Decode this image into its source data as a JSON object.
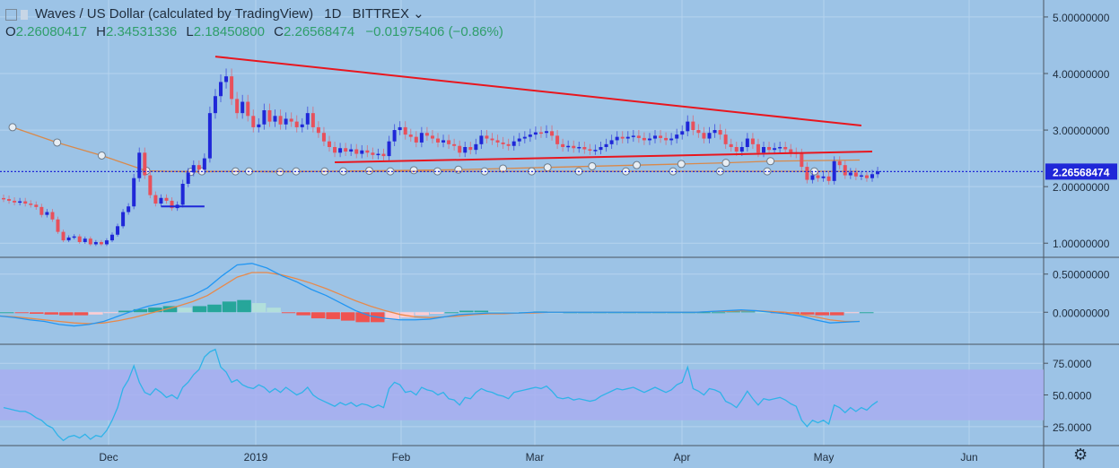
{
  "legend": {
    "title": "Waves / US Dollar (calculated by TradingView)",
    "interval": "1D",
    "exchange": "BITTREX",
    "open_label": "O",
    "open": "2.26080417",
    "high_label": "H",
    "high": "2.34531336",
    "low_label": "L",
    "low": "2.18450800",
    "close_label": "C",
    "close": "2.26568474",
    "change": "−0.01975406 (−0.86%)",
    "chevron": "⌄"
  },
  "icons": {
    "settings": "⚙"
  },
  "colors": {
    "background": "#9cc3e6",
    "bull": "#1f27d8",
    "bear": "#e8505b",
    "trendline": "#e8161e",
    "price_line": "#1f27d8",
    "ma": "#d9894a",
    "macd": "#2196f3",
    "signal": "#e8894a",
    "hist_up": "#26a69a",
    "hist_up_light": "#b2dfdb",
    "hist_down": "#ef5350",
    "hist_down_light": "#ffcdd2",
    "rsi": "#2fb3e8",
    "rsi_band": "#a8aef0"
  },
  "chart_data": [
    {
      "type": "candlestick",
      "symbol": "Waves / US Dollar",
      "x_labels": [
        "Dec",
        "2019",
        "Feb",
        "Mar",
        "Apr",
        "May",
        "Jun"
      ],
      "y_ticks": [
        "5.00000000",
        "4.00000000",
        "3.00000000",
        "2.00000000",
        "1.00000000"
      ],
      "y_tick_values": [
        5,
        4,
        3,
        2,
        1
      ],
      "ylim": [
        0.75,
        5.3
      ],
      "last_price": 2.26568474,
      "last_price_label": "2.26568474",
      "series_close": [
        1.78,
        1.75,
        1.72,
        1.74,
        1.7,
        1.68,
        1.64,
        1.5,
        1.55,
        1.42,
        1.2,
        1.05,
        1.1,
        1.12,
        1.02,
        1.08,
        0.98,
        1.02,
        0.98,
        1.05,
        1.15,
        1.3,
        1.55,
        1.65,
        2.15,
        2.6,
        2.2,
        1.85,
        1.7,
        1.8,
        1.75,
        1.62,
        1.68,
        2.05,
        2.25,
        2.38,
        2.3,
        2.5,
        3.3,
        3.6,
        3.85,
        3.95,
        3.55,
        3.3,
        3.5,
        3.25,
        3.05,
        3.1,
        3.35,
        3.15,
        3.25,
        3.1,
        3.2,
        3.15,
        3.05,
        3.1,
        3.3,
        3.05,
        2.95,
        2.8,
        2.7,
        2.6,
        2.68,
        2.62,
        2.66,
        2.58,
        2.64,
        2.6,
        2.56,
        2.58,
        2.54,
        2.8,
        3.0,
        3.05,
        2.92,
        2.88,
        2.78,
        2.95,
        2.9,
        2.85,
        2.78,
        2.82,
        2.75,
        2.72,
        2.6,
        2.7,
        2.65,
        2.75,
        2.9,
        2.85,
        2.82,
        2.78,
        2.75,
        2.72,
        2.8,
        2.85,
        2.88,
        2.92,
        2.96,
        2.95,
        2.98,
        2.9,
        2.75,
        2.7,
        2.72,
        2.68,
        2.7,
        2.66,
        2.64,
        2.65,
        2.7,
        2.75,
        2.82,
        2.88,
        2.85,
        2.88,
        2.9,
        2.86,
        2.82,
        2.85,
        2.9,
        2.86,
        2.82,
        2.85,
        2.92,
        2.98,
        3.15,
        3.0,
        2.95,
        2.85,
        2.95,
        3.0,
        2.92,
        2.75,
        2.7,
        2.62,
        2.7,
        2.85,
        2.75,
        2.6,
        2.7,
        2.65,
        2.68,
        2.7,
        2.66,
        2.6,
        2.58,
        2.35,
        2.12,
        2.2,
        2.15,
        2.18,
        2.1,
        2.45,
        2.38,
        2.2,
        2.25,
        2.18,
        2.2,
        2.15,
        2.22,
        2.27
      ],
      "trendlines": [
        {
          "points": [
            [
              39,
              4.3
            ],
            [
              158,
              3.08
            ]
          ]
        },
        {
          "points": [
            [
              61,
              2.43
            ],
            [
              160,
              2.62
            ]
          ]
        },
        {
          "points": [
            [
              29,
              1.65
            ],
            [
              37,
              1.65
            ]
          ]
        }
      ],
      "ma_series": [
        3.05,
        2.78,
        2.55,
        2.28,
        2.26,
        2.27,
        2.26,
        2.27,
        2.28,
        2.29,
        2.3,
        2.32,
        2.34,
        2.36,
        2.38,
        2.4,
        2.42,
        2.45,
        2.46,
        2.47
      ],
      "flat_ma_value": 2.27
    },
    {
      "type": "macd",
      "y_ticks": [
        "0.50000000",
        "0.00000000"
      ],
      "y_tick_values": [
        0.5,
        0.0
      ],
      "ylim": [
        -0.42,
        0.72
      ],
      "macd": [
        -0.05,
        -0.07,
        -0.1,
        -0.12,
        -0.16,
        -0.18,
        -0.16,
        -0.12,
        -0.05,
        0.02,
        0.08,
        0.12,
        0.16,
        0.22,
        0.32,
        0.48,
        0.62,
        0.64,
        0.58,
        0.48,
        0.4,
        0.3,
        0.22,
        0.12,
        0.02,
        -0.05,
        -0.08,
        -0.1,
        -0.1,
        -0.09,
        -0.06,
        -0.03,
        -0.02,
        -0.01,
        -0.01,
        -0.01,
        0.0,
        0.0,
        0.0,
        0.0,
        0.0,
        0.0,
        0.0,
        0.0,
        0.0,
        0.0,
        0.0,
        0.0,
        0.01,
        0.02,
        0.03,
        0.02,
        0.0,
        -0.02,
        -0.05,
        -0.1,
        -0.14,
        -0.13,
        -0.12
      ],
      "signal": [
        -0.05,
        -0.06,
        -0.08,
        -0.1,
        -0.12,
        -0.14,
        -0.15,
        -0.14,
        -0.11,
        -0.07,
        -0.02,
        0.03,
        0.08,
        0.14,
        0.22,
        0.34,
        0.46,
        0.52,
        0.52,
        0.49,
        0.44,
        0.38,
        0.31,
        0.23,
        0.15,
        0.08,
        0.02,
        -0.03,
        -0.06,
        -0.07,
        -0.06,
        -0.05,
        -0.03,
        -0.02,
        -0.02,
        -0.01,
        -0.01,
        0.0,
        0.0,
        0.0,
        0.0,
        0.0,
        0.0,
        0.0,
        0.0,
        0.0,
        0.0,
        0.0,
        0.01,
        0.01,
        0.02,
        0.02,
        0.01,
        0.0,
        -0.03,
        -0.06,
        -0.1,
        -0.12,
        -0.12
      ],
      "histogram": [
        0.0,
        -0.01,
        -0.02,
        -0.03,
        -0.04,
        -0.04,
        -0.03,
        -0.01,
        0.02,
        0.04,
        0.06,
        0.08,
        0.06,
        0.08,
        0.1,
        0.14,
        0.16,
        0.12,
        0.06,
        -0.01,
        -0.04,
        -0.08,
        -0.09,
        -0.11,
        -0.13,
        -0.13,
        -0.1,
        -0.07,
        -0.04,
        -0.02,
        0.0,
        0.02,
        0.02,
        0.01,
        0.0,
        0.0,
        0.01,
        0.0,
        0.0,
        0.0,
        0.0,
        0.0,
        0.0,
        0.0,
        0.0,
        0.0,
        0.0,
        0.0,
        0.0,
        0.01,
        0.01,
        0.0,
        -0.01,
        -0.02,
        -0.03,
        -0.04,
        -0.04,
        -0.01,
        0.0
      ]
    },
    {
      "type": "rsi",
      "y_ticks": [
        "75.0000",
        "50.0000",
        "25.0000"
      ],
      "y_tick_values": [
        75,
        50,
        25
      ],
      "ylim": [
        10,
        90
      ],
      "band": [
        30,
        70
      ],
      "values": [
        40,
        39,
        38,
        37,
        37,
        35,
        32,
        30,
        26,
        24,
        18,
        14,
        17,
        18,
        16,
        19,
        15,
        18,
        17,
        22,
        30,
        40,
        55,
        62,
        73,
        60,
        52,
        50,
        55,
        52,
        48,
        50,
        47,
        56,
        60,
        66,
        70,
        80,
        84,
        86,
        72,
        68,
        60,
        62,
        58,
        56,
        55,
        58,
        56,
        52,
        55,
        52,
        56,
        53,
        50,
        52,
        56,
        50,
        47,
        45,
        43,
        41,
        44,
        42,
        44,
        41,
        43,
        42,
        40,
        42,
        40,
        55,
        60,
        58,
        52,
        53,
        50,
        56,
        54,
        53,
        50,
        52,
        47,
        46,
        42,
        48,
        47,
        52,
        55,
        53,
        52,
        50,
        49,
        47,
        52,
        53,
        54,
        55,
        56,
        55,
        57,
        53,
        48,
        47,
        48,
        46,
        47,
        46,
        45,
        46,
        49,
        51,
        53,
        55,
        54,
        55,
        56,
        54,
        52,
        54,
        56,
        54,
        52,
        54,
        58,
        60,
        72,
        55,
        53,
        50,
        55,
        54,
        52,
        45,
        43,
        40,
        46,
        53,
        47,
        42,
        47,
        46,
        47,
        48,
        46,
        43,
        41,
        30,
        25,
        30,
        28,
        30,
        27,
        42,
        40,
        36,
        40,
        37,
        40,
        38,
        42,
        45
      ]
    }
  ]
}
